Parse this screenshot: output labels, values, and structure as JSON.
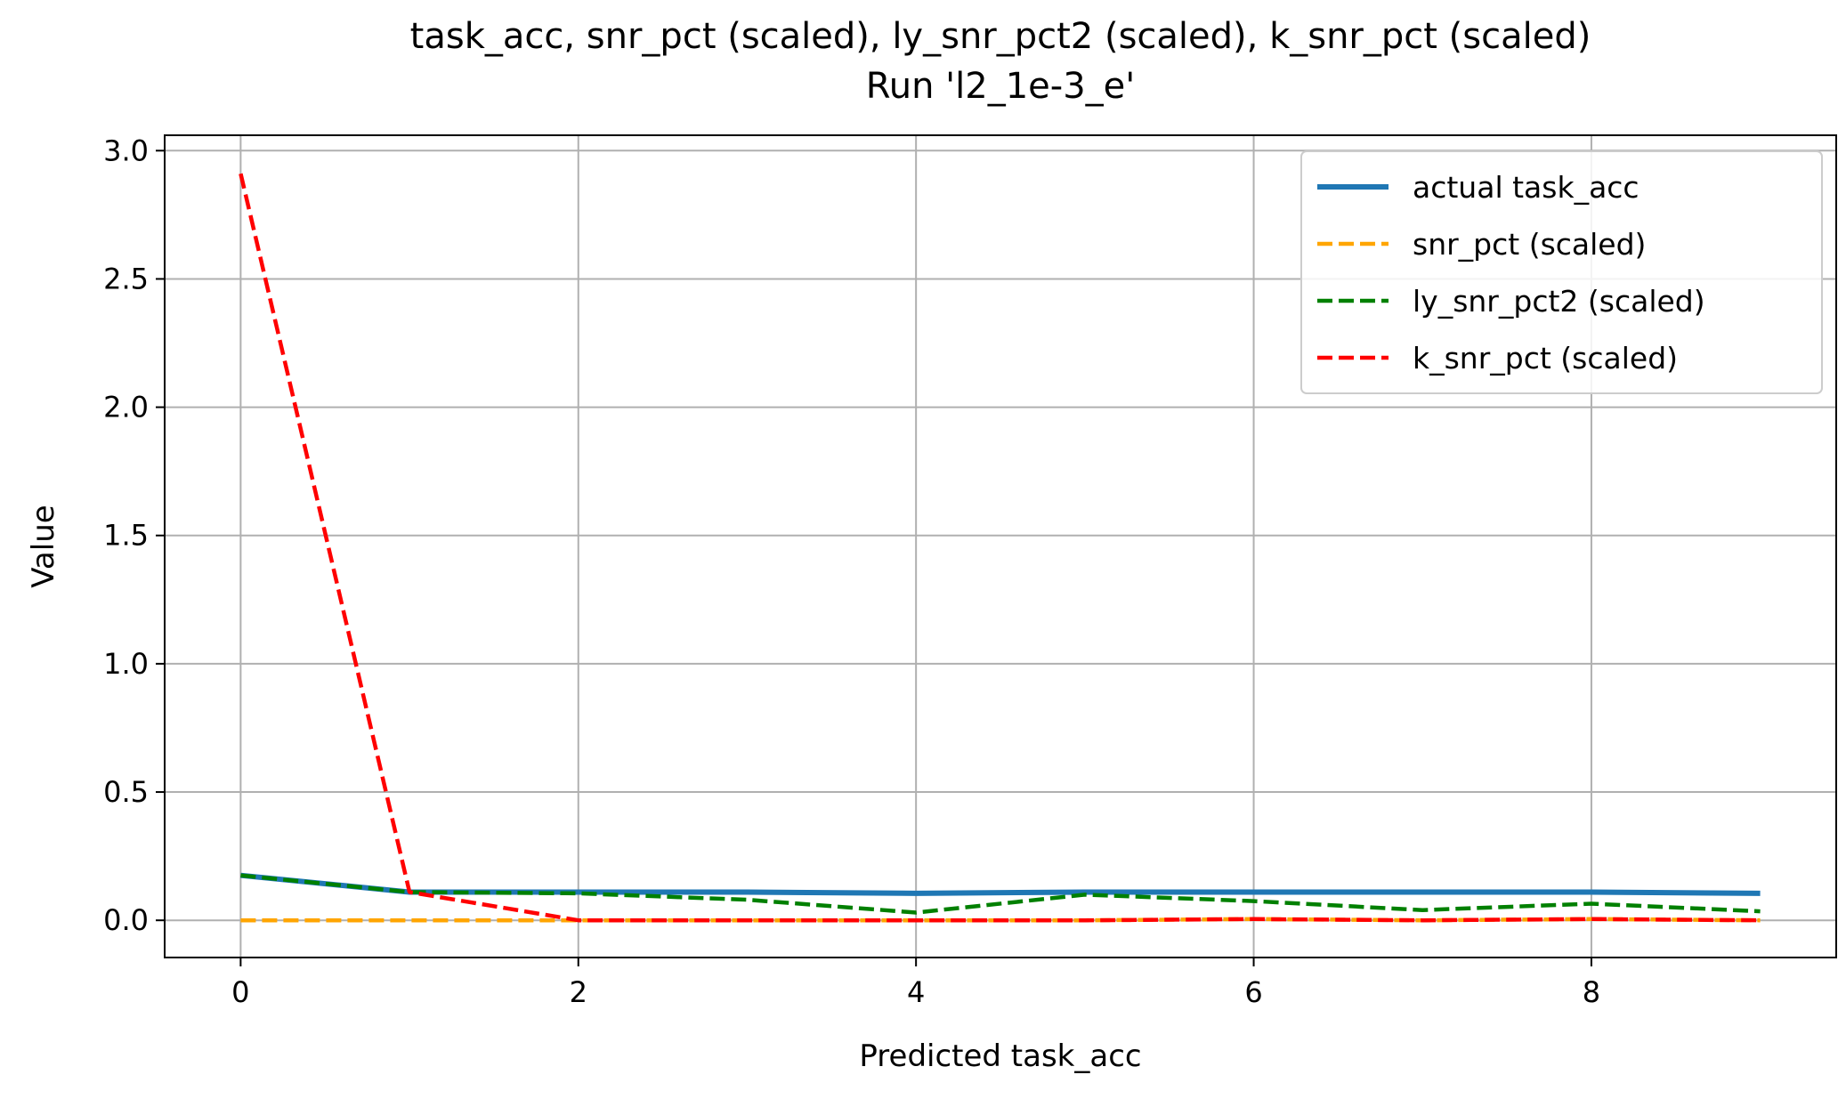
{
  "chart_data": {
    "type": "line",
    "title": "task_acc, snr_pct (scaled), ly_snr_pct2 (scaled), k_snr_pct (scaled)",
    "subtitle": "Run 'l2_1e-3_e'",
    "xlabel": "Predicted task_acc",
    "ylabel": "Value",
    "xlim": [
      -0.45,
      9.45
    ],
    "ylim": [
      -0.145,
      3.06
    ],
    "xticks": [
      0,
      2,
      4,
      6,
      8
    ],
    "xtick_labels": [
      "0",
      "2",
      "4",
      "6",
      "8"
    ],
    "yticks": [
      0.0,
      0.5,
      1.0,
      1.5,
      2.0,
      2.5,
      3.0
    ],
    "ytick_labels": [
      "0.0",
      "0.5",
      "1.0",
      "1.5",
      "2.0",
      "2.5",
      "3.0"
    ],
    "grid": true,
    "legend_position": "top-right",
    "x": [
      0,
      1,
      2,
      3,
      4,
      5,
      6,
      7,
      8,
      9
    ],
    "series": [
      {
        "name": "actual task_acc",
        "color": "#1f77b4",
        "style": "solid",
        "values": [
          0.175,
          0.11,
          0.11,
          0.11,
          0.105,
          0.11,
          0.11,
          0.11,
          0.11,
          0.105
        ]
      },
      {
        "name": "snr_pct (scaled)",
        "color": "#ffa500",
        "style": "dashed",
        "values": [
          0.0,
          0.0,
          0.0,
          0.0,
          0.0,
          0.0,
          0.005,
          0.0,
          0.005,
          0.0
        ]
      },
      {
        "name": "ly_snr_pct2 (scaled)",
        "color": "#008000",
        "style": "dashed",
        "values": [
          0.175,
          0.11,
          0.105,
          0.08,
          0.03,
          0.1,
          0.075,
          0.04,
          0.065,
          0.035
        ]
      },
      {
        "name": "k_snr_pct (scaled)",
        "color": "#ff0000",
        "style": "dashed",
        "values": [
          2.91,
          0.11,
          0.0,
          0.0,
          0.0,
          0.0,
          0.005,
          0.0,
          0.005,
          0.0
        ]
      }
    ]
  }
}
